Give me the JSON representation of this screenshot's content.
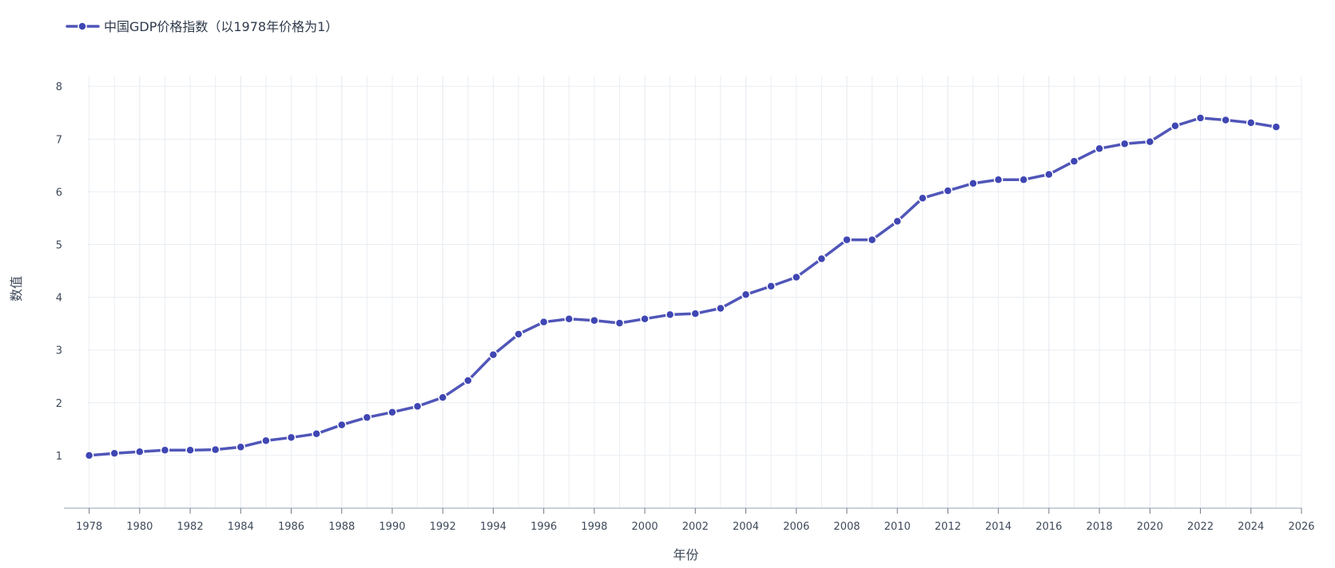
{
  "chart_data": {
    "type": "line",
    "title": "",
    "xlabel": "年份",
    "ylabel": "数值",
    "xlim": [
      1977,
      2026
    ],
    "ylim": [
      0,
      8.2
    ],
    "x_ticks": [
      1978,
      1980,
      1982,
      1984,
      1986,
      1988,
      1990,
      1992,
      1994,
      1996,
      1998,
      2000,
      2002,
      2004,
      2006,
      2008,
      2010,
      2012,
      2014,
      2016,
      2018,
      2020,
      2022,
      2024,
      2026
    ],
    "y_ticks": [
      1,
      2,
      3,
      4,
      5,
      6,
      7,
      8
    ],
    "grid": true,
    "legend_position": "top-left",
    "colors": {
      "line": "#5056b8",
      "marker": "#3f46b3",
      "grid": "#eaedf2",
      "axis": "#b9c0cb"
    },
    "series": [
      {
        "name": "中国GDP价格指数（以1978年价格为1）",
        "x": [
          1978,
          1979,
          1980,
          1981,
          1982,
          1983,
          1984,
          1985,
          1986,
          1987,
          1988,
          1989,
          1990,
          1991,
          1992,
          1993,
          1994,
          1995,
          1996,
          1997,
          1998,
          1999,
          2000,
          2001,
          2002,
          2003,
          2004,
          2005,
          2006,
          2007,
          2008,
          2009,
          2010,
          2011,
          2012,
          2013,
          2014,
          2015,
          2016,
          2017,
          2018,
          2019,
          2020,
          2021,
          2022,
          2023,
          2024,
          2025
        ],
        "y": [
          1.0,
          1.04,
          1.07,
          1.1,
          1.1,
          1.11,
          1.16,
          1.28,
          1.34,
          1.41,
          1.58,
          1.72,
          1.82,
          1.93,
          2.1,
          2.42,
          2.91,
          3.3,
          3.53,
          3.59,
          3.56,
          3.51,
          3.59,
          3.67,
          3.69,
          3.79,
          4.05,
          4.21,
          4.38,
          4.73,
          5.09,
          5.09,
          5.44,
          5.88,
          6.02,
          6.16,
          6.23,
          6.23,
          6.33,
          6.58,
          6.82,
          6.91,
          6.95,
          7.25,
          7.4,
          7.36,
          7.31,
          7.23
        ]
      }
    ]
  }
}
